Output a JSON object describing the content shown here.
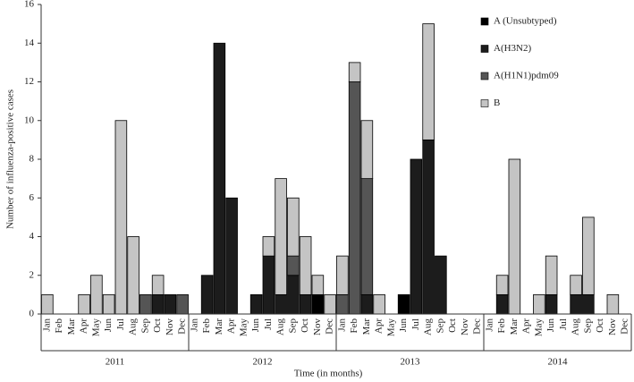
{
  "chart_data": {
    "type": "stacked_bar",
    "y_label": "Number of influenza-positive cases",
    "x_label": "Time (in months)",
    "categories": [
      "Jan",
      "Feb",
      "Mar",
      "Apr",
      "May",
      "Jun",
      "Jul",
      "Aug",
      "Sep",
      "Oct",
      "Nov",
      "Dec",
      "Jan",
      "Feb",
      "Mar",
      "Apr",
      "May",
      "Jun",
      "Jul",
      "Aug",
      "Sep",
      "Oct",
      "Nov",
      "Dec",
      "Jan",
      "Feb",
      "Mar",
      "Apr",
      "May",
      "Jun",
      "Jul",
      "Aug",
      "Sep",
      "Oct",
      "Nov",
      "Dec",
      "Jan",
      "Feb",
      "Mar",
      "Apr",
      "May",
      "Jun",
      "Jul",
      "Aug",
      "Sep",
      "Oct",
      "Nov",
      "Dec"
    ],
    "years": [
      "2011",
      "2012",
      "2013",
      "2014"
    ],
    "series": [
      {
        "name": "A (Unsubtyped)",
        "color": "#000000",
        "values": [
          0,
          0,
          0,
          0,
          0,
          0,
          0,
          0,
          0,
          0,
          0,
          0,
          0,
          0,
          0,
          0,
          0,
          0,
          0,
          0,
          0,
          0,
          1,
          0,
          0,
          0,
          0,
          0,
          0,
          1,
          0,
          0,
          0,
          0,
          0,
          0,
          0,
          0,
          0,
          0,
          0,
          0,
          0,
          0,
          0,
          0,
          0,
          0
        ]
      },
      {
        "name": "A(H3N2)",
        "color": "#1c1c1c",
        "values": [
          0,
          0,
          0,
          0,
          0,
          0,
          0,
          0,
          0,
          1,
          1,
          0,
          0,
          2,
          14,
          6,
          0,
          1,
          3,
          1,
          2,
          1,
          0,
          0,
          0,
          0,
          1,
          0,
          0,
          0,
          8,
          9,
          3,
          0,
          0,
          0,
          0,
          1,
          0,
          0,
          0,
          1,
          0,
          1,
          1,
          0,
          0,
          0
        ]
      },
      {
        "name": "A(H1N1)pdm09",
        "color": "#555555",
        "values": [
          0,
          0,
          0,
          0,
          0,
          0,
          0,
          0,
          1,
          0,
          0,
          1,
          0,
          0,
          0,
          0,
          0,
          0,
          0,
          0,
          1,
          0,
          0,
          0,
          1,
          12,
          6,
          0,
          0,
          0,
          0,
          0,
          0,
          0,
          0,
          0,
          0,
          0,
          0,
          0,
          0,
          0,
          0,
          0,
          0,
          0,
          0,
          0
        ]
      },
      {
        "name": "B",
        "color": "#c4c4c4",
        "values": [
          1,
          0,
          0,
          1,
          2,
          1,
          10,
          4,
          0,
          1,
          0,
          0,
          0,
          0,
          0,
          0,
          0,
          0,
          1,
          6,
          3,
          3,
          1,
          1,
          2,
          1,
          3,
          1,
          0,
          0,
          0,
          6,
          0,
          0,
          0,
          0,
          0,
          1,
          8,
          0,
          1,
          2,
          0,
          1,
          4,
          0,
          1,
          0
        ]
      }
    ],
    "ylim": [
      0,
      16
    ],
    "yticks": [
      0,
      2,
      4,
      6,
      8,
      10,
      12,
      14,
      16
    ],
    "legend": "upper right"
  }
}
